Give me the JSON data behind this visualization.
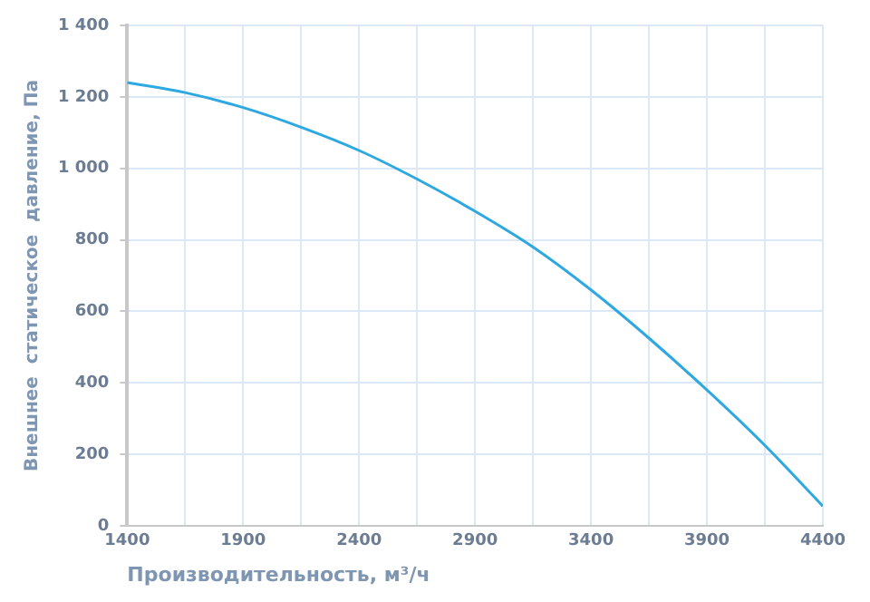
{
  "chart_data": {
    "type": "line",
    "xlabel": "Производительность, м³/ч",
    "ylabel": "Внешнее  статическое  давление, Па",
    "x": [
      1400,
      1650,
      1900,
      2150,
      2400,
      2650,
      2900,
      3150,
      3400,
      3650,
      3900,
      4150,
      4400
    ],
    "series": [
      {
        "color": "#2ea8e0",
        "values": [
          1240,
          1212,
          1170,
          1115,
          1050,
          970,
          880,
          780,
          660,
          525,
          380,
          225,
          55
        ]
      }
    ],
    "xlim": [
      1400,
      4400
    ],
    "xticks": [
      1400,
      {
        "value": 1650,
        "label": null
      },
      1900,
      {
        "value": 2150,
        "label": null
      },
      2400,
      {
        "value": 2650,
        "label": null
      },
      2900,
      {
        "value": 3150,
        "label": null
      },
      3400,
      {
        "value": 3650,
        "label": null
      },
      3900,
      {
        "value": 4150,
        "label": null
      },
      4400
    ],
    "ylim": [
      0,
      1400
    ],
    "yticks": [
      0,
      200,
      400,
      600,
      800,
      {
        "value": 1000,
        "label": "1 000"
      },
      {
        "value": 1200,
        "label": "1 200"
      },
      {
        "value": 1400,
        "label": "1 400"
      }
    ],
    "grid": true,
    "legend": false,
    "marker": "none",
    "line_style": "solid"
  }
}
